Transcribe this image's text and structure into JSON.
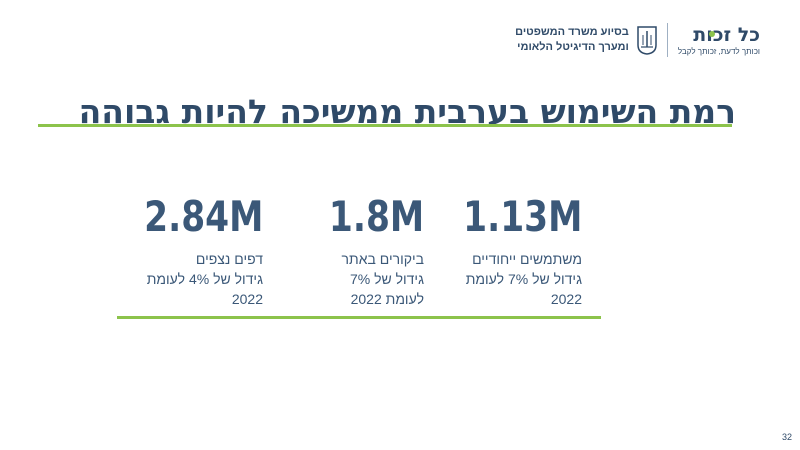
{
  "header": {
    "brand_name": "כל זכות",
    "brand_tagline": "וכותך לדעת, זכותך לקבל",
    "partner_line1": "בסיוע משרד המשפטים",
    "partner_line2": "ומערך הדיגיטל הלאומי"
  },
  "title": "רמת השימוש בערבית ממשיכה להיות גבוהה",
  "stats": [
    {
      "value": "1.13M",
      "caption_lines": [
        "משתמשים ייחודיים",
        "גידול של 7% לעומת",
        "2022"
      ]
    },
    {
      "value": "1.8M",
      "caption_lines": [
        "ביקורים באתר",
        "גידול של",
        "7%",
        "לעומת 2022"
      ]
    },
    {
      "value": "2.84M",
      "caption_lines": [
        "דפים נצפים",
        "גידול של 4% לעומת",
        "2022"
      ]
    }
  ],
  "page_number": "32",
  "colors": {
    "primary": "#2f4a68",
    "accent": "#8cc34b"
  }
}
